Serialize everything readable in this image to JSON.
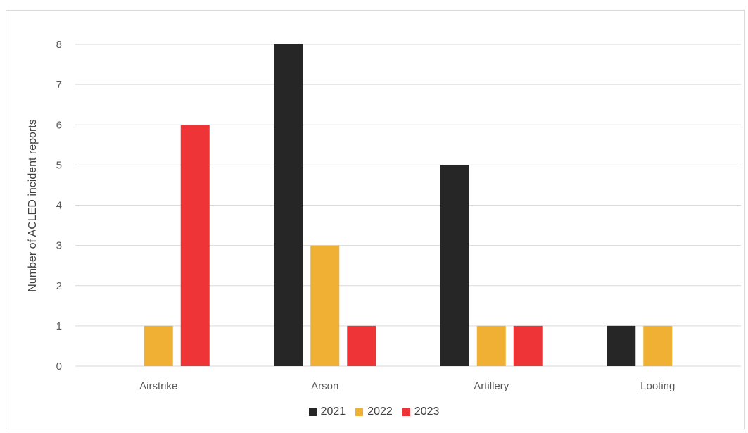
{
  "chart_data": {
    "type": "bar",
    "title": "",
    "xlabel": "",
    "ylabel": "Number of ACLED incident reports",
    "categories": [
      "Airstrike",
      "Arson",
      "Artillery",
      "Looting"
    ],
    "series": [
      {
        "name": "2021",
        "values": [
          0,
          8,
          5,
          1
        ],
        "color": "#262626"
      },
      {
        "name": "2022",
        "values": [
          1,
          3,
          1,
          1
        ],
        "color": "#efb034"
      },
      {
        "name": "2023",
        "values": [
          6,
          1,
          1,
          0
        ],
        "color": "#ef3437"
      }
    ],
    "ylim": [
      0,
      8
    ],
    "yticks": [
      "0",
      "1",
      "2",
      "3",
      "4",
      "5",
      "6",
      "7",
      "8"
    ],
    "grid": true,
    "legend_position": "bottom",
    "colors": {
      "gridline": "#d9d9d9",
      "axis_text": "#595959"
    }
  }
}
